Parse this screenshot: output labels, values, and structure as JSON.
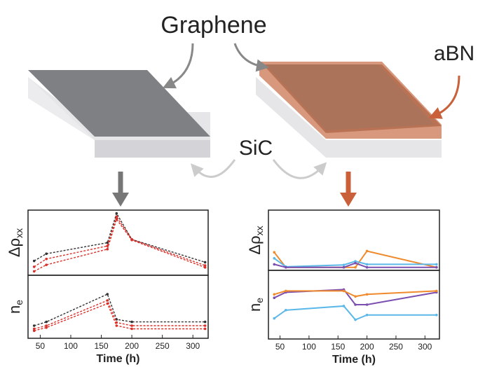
{
  "labels": {
    "graphene": "Graphene",
    "abn": "aBN",
    "sic": "SiC"
  },
  "chart_data": [
    {
      "type": "line",
      "y_label": "Δρ",
      "y_label_sub": "xx",
      "xlim": [
        30,
        325
      ],
      "ylim": [
        0,
        1
      ],
      "line_style": "dashed",
      "x": [
        40,
        60,
        160,
        175,
        200,
        320
      ],
      "series": [
        {
          "color": "#333333",
          "values": [
            0.22,
            0.33,
            0.5,
            0.95,
            0.55,
            0.2
          ]
        },
        {
          "color": "#d9302a",
          "values": [
            0.13,
            0.25,
            0.45,
            0.9,
            0.55,
            0.15
          ]
        },
        {
          "color": "#d9302a",
          "values": [
            0.06,
            0.16,
            0.4,
            0.86,
            0.54,
            0.12
          ]
        }
      ]
    },
    {
      "type": "line",
      "y_label": "n",
      "y_label_sub": "e",
      "x_label": "Time (h)",
      "xlim": [
        30,
        325
      ],
      "xticks": [
        50,
        100,
        150,
        200,
        250,
        300
      ],
      "ylim": [
        0,
        1
      ],
      "line_style": "dashed",
      "x": [
        40,
        60,
        160,
        175,
        200,
        320
      ],
      "series": [
        {
          "color": "#333333",
          "values": [
            0.2,
            0.26,
            0.7,
            0.3,
            0.26,
            0.26
          ]
        },
        {
          "color": "#d9302a",
          "values": [
            0.15,
            0.2,
            0.6,
            0.25,
            0.2,
            0.2
          ]
        },
        {
          "color": "#d9302a",
          "values": [
            0.12,
            0.17,
            0.55,
            0.2,
            0.15,
            0.15
          ]
        }
      ]
    },
    {
      "type": "line",
      "y_label": "Δρ",
      "y_label_sub": "xx",
      "xlim": [
        30,
        325
      ],
      "ylim": [
        0,
        1
      ],
      "line_style": "solid",
      "x": [
        40,
        60,
        160,
        180,
        200,
        320
      ],
      "series": [
        {
          "color": "#f08a2c",
          "values": [
            0.3,
            0.05,
            0.05,
            0.05,
            0.32,
            0.05
          ]
        },
        {
          "color": "#5bb8e8",
          "values": [
            0.2,
            0.06,
            0.09,
            0.15,
            0.1,
            0.1
          ]
        },
        {
          "color": "#7b4fb0",
          "values": [
            0.1,
            0.05,
            0.05,
            0.12,
            0.05,
            0.05
          ]
        }
      ]
    },
    {
      "type": "line",
      "y_label": "n",
      "y_label_sub": "e",
      "x_label": "Time (h)",
      "xlim": [
        30,
        325
      ],
      "xticks": [
        50,
        100,
        150,
        200,
        250,
        300
      ],
      "ylim": [
        0,
        1
      ],
      "line_style": "solid",
      "x": [
        40,
        60,
        160,
        180,
        200,
        320
      ],
      "series": [
        {
          "color": "#7b4fb0",
          "values": [
            0.6,
            0.68,
            0.72,
            0.5,
            0.5,
            0.68
          ]
        },
        {
          "color": "#f08a2c",
          "values": [
            0.65,
            0.7,
            0.7,
            0.62,
            0.65,
            0.7
          ]
        },
        {
          "color": "#5bb8e8",
          "values": [
            0.3,
            0.42,
            0.48,
            0.28,
            0.35,
            0.35
          ]
        }
      ]
    }
  ]
}
